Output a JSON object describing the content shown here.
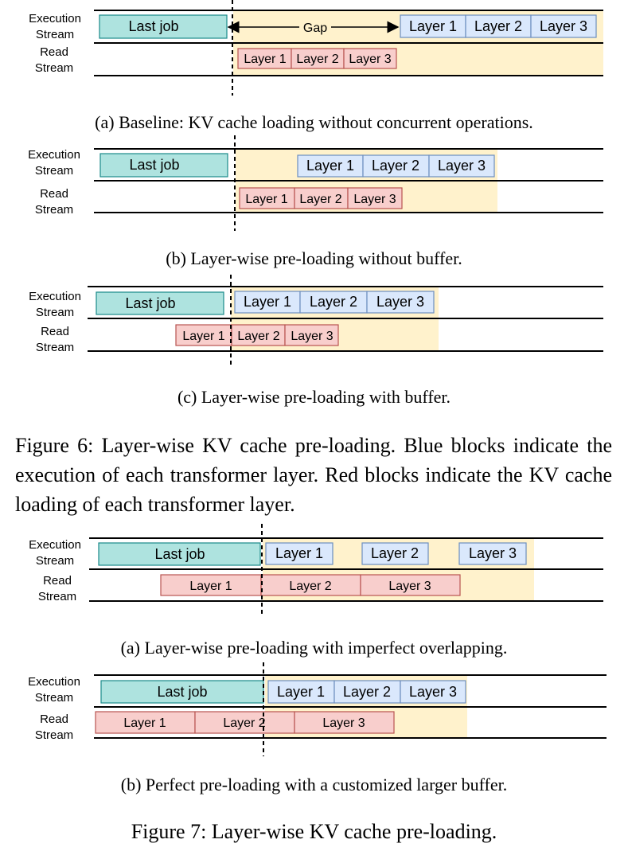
{
  "stream_labels": {
    "execution": [
      "Execution",
      "Stream"
    ],
    "read": [
      "Read",
      "Stream"
    ]
  },
  "blocks": {
    "last_job": "Last job",
    "layer1": "Layer 1",
    "layer2": "Layer 2",
    "layer3": "Layer 3",
    "gap": "Gap"
  },
  "colors": {
    "teal": "#aee3df",
    "teal_border": "#1a8a8a",
    "blue": "#dae8fc",
    "blue_border": "#6c8ebf",
    "red": "#f8cecc",
    "red_border": "#b85450",
    "highlight": "#fff2cc"
  },
  "captions": {
    "fig6a": "(a) Baseline: KV cache loading without concurrent operations.",
    "fig6b": "(b) Layer-wise pre-loading without buffer.",
    "fig6c": "(c) Layer-wise pre-loading with buffer.",
    "fig6": "Figure 6: Layer-wise KV cache pre-loading. Blue blocks indicate the execution of each transformer layer. Red blocks indicate the KV cache loading of each transformer layer.",
    "fig7a": "(a) Layer-wise pre-loading with imperfect overlapping.",
    "fig7b": "(b) Perfect pre-loading with a customized larger buffer.",
    "fig7": "Figure 7: Layer-wise KV cache pre-loading."
  }
}
